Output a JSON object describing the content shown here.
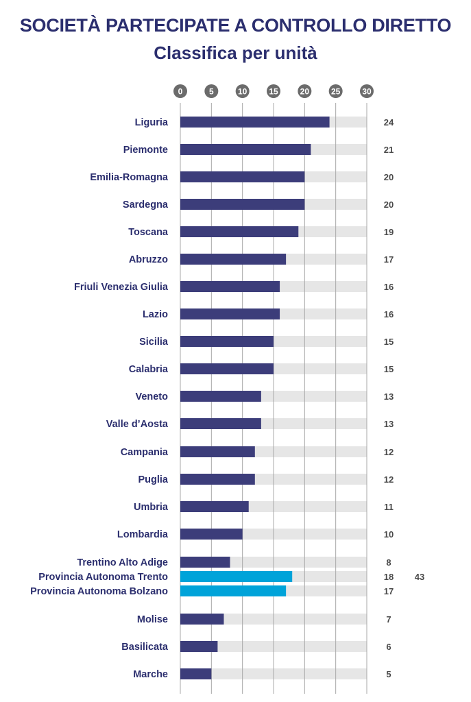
{
  "title": "SOCIETÀ PARTECIPATE A CONTROLLO DIRETTO",
  "subtitle": "Classifica per unità",
  "colors": {
    "bar_primary": "#3c3d7a",
    "bar_highlight": "#00a3d9",
    "track": "#e6e6e6",
    "tick_badge": "#6b6b6b",
    "label": "#2b2e6e",
    "value": "#4a4a4a"
  },
  "chart_data": {
    "type": "bar",
    "orientation": "horizontal",
    "title": "SOCIETÀ PARTECIPATE A CONTROLLO DIRETTO",
    "subtitle": "Classifica per unità",
    "xlim": [
      0,
      30
    ],
    "xticks": [
      0,
      5,
      10,
      15,
      20,
      25,
      30
    ],
    "grid": true,
    "categories": [
      "Liguria",
      "Piemonte",
      "Emilia-Romagna",
      "Sardegna",
      "Toscana",
      "Abruzzo",
      "Friuli Venezia Giulia",
      "Lazio",
      "Sicilia",
      "Calabria",
      "Veneto",
      "Valle d’Aosta",
      "Campania",
      "Puglia",
      "Umbria",
      "Lombardia",
      "Trentino Alto Adige",
      "Provincia Autonoma Trento",
      "Provincia Autonoma Bolzano",
      "Molise",
      "Basilicata",
      "Marche"
    ],
    "values": [
      24,
      21,
      20,
      20,
      19,
      17,
      16,
      16,
      15,
      15,
      13,
      13,
      12,
      12,
      11,
      10,
      8,
      18,
      17,
      7,
      6,
      5
    ],
    "value_labels": [
      "24",
      "21",
      "20",
      "20",
      "19",
      "17",
      "16",
      "16",
      "15",
      "15",
      "13",
      "13",
      "12",
      "12",
      "11",
      "10",
      "8",
      "18",
      "17",
      "7",
      "6",
      "5"
    ],
    "highlighted": [
      "Provincia Autonoma Trento",
      "Provincia Autonoma Bolzano"
    ],
    "group_total": {
      "label": "43",
      "members": [
        "Trentino Alto Adige",
        "Provincia Autonoma Trento",
        "Provincia Autonoma Bolzano"
      ]
    }
  }
}
